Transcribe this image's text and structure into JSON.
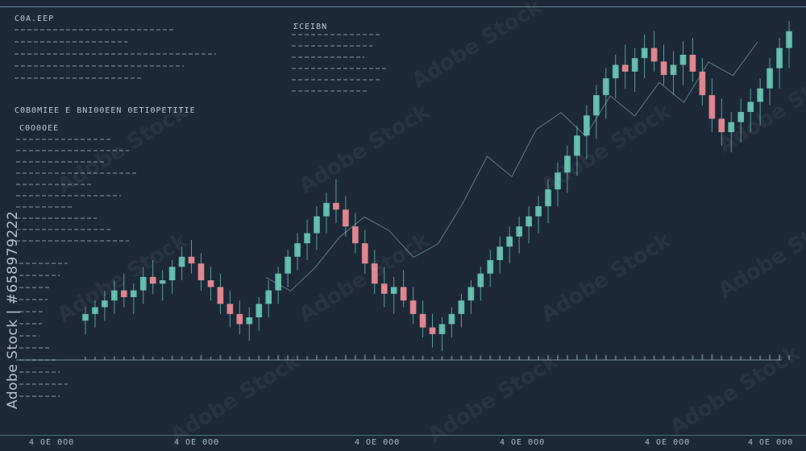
{
  "header": {
    "top_labels": [
      "",
      "",
      "",
      "",
      "",
      ""
    ]
  },
  "panel_left": {
    "title": "CΘΑ.ΕΕΡ",
    "section_title": "CΘΒΘΜΙΕΕ Ε ΒΝΙΘΘΕΕΝ ΘΕΤΙΘΡΕΤΙΤΙΕ",
    "subsection_title": "CΘΟΘΟΕΕ"
  },
  "panel_mid": {
    "title": "ΣCΕΙΒΝ"
  },
  "watermark": {
    "side_text": "Adobe Stock | #658979222",
    "tiled_text": "Adobe Stock"
  },
  "bottom_labels": [
    "4 ΟΕ ΘΟΘ",
    "4 ΟΕ ΘΟΘ",
    "4 ΟΕ ΘΟΘ",
    "4 ΟΕ ΘΟΘ",
    "4 ΟΕ ΘΟΘ",
    "4 ΟΕ ΘΟΘ"
  ],
  "colors": {
    "background": "#1c2838",
    "bull": "#6fd4bf",
    "bear": "#e98a93",
    "line": "#8fb2c4"
  },
  "chart_data": {
    "type": "candlestick",
    "title": "",
    "xlabel": "",
    "ylabel": "",
    "grid": false,
    "ylim": [
      0,
      100
    ],
    "candles": [
      {
        "o": 10,
        "h": 14,
        "l": 6,
        "c": 12
      },
      {
        "o": 12,
        "h": 16,
        "l": 8,
        "c": 14
      },
      {
        "o": 14,
        "h": 19,
        "l": 10,
        "c": 16
      },
      {
        "o": 16,
        "h": 22,
        "l": 12,
        "c": 19
      },
      {
        "o": 19,
        "h": 24,
        "l": 14,
        "c": 17
      },
      {
        "o": 17,
        "h": 21,
        "l": 12,
        "c": 19
      },
      {
        "o": 19,
        "h": 26,
        "l": 15,
        "c": 23
      },
      {
        "o": 23,
        "h": 28,
        "l": 18,
        "c": 21
      },
      {
        "o": 21,
        "h": 25,
        "l": 16,
        "c": 22
      },
      {
        "o": 22,
        "h": 28,
        "l": 18,
        "c": 26
      },
      {
        "o": 26,
        "h": 32,
        "l": 22,
        "c": 29
      },
      {
        "o": 29,
        "h": 34,
        "l": 24,
        "c": 27
      },
      {
        "o": 27,
        "h": 30,
        "l": 19,
        "c": 22
      },
      {
        "o": 22,
        "h": 26,
        "l": 16,
        "c": 20
      },
      {
        "o": 20,
        "h": 24,
        "l": 12,
        "c": 15
      },
      {
        "o": 15,
        "h": 19,
        "l": 8,
        "c": 12
      },
      {
        "o": 12,
        "h": 16,
        "l": 6,
        "c": 9
      },
      {
        "o": 9,
        "h": 14,
        "l": 4,
        "c": 11
      },
      {
        "o": 11,
        "h": 17,
        "l": 7,
        "c": 15
      },
      {
        "o": 15,
        "h": 22,
        "l": 11,
        "c": 19
      },
      {
        "o": 19,
        "h": 26,
        "l": 15,
        "c": 24
      },
      {
        "o": 24,
        "h": 31,
        "l": 20,
        "c": 29
      },
      {
        "o": 29,
        "h": 36,
        "l": 25,
        "c": 33
      },
      {
        "o": 33,
        "h": 40,
        "l": 28,
        "c": 36
      },
      {
        "o": 36,
        "h": 44,
        "l": 31,
        "c": 41
      },
      {
        "o": 41,
        "h": 48,
        "l": 36,
        "c": 45
      },
      {
        "o": 45,
        "h": 52,
        "l": 39,
        "c": 43
      },
      {
        "o": 43,
        "h": 47,
        "l": 35,
        "c": 38
      },
      {
        "o": 38,
        "h": 42,
        "l": 30,
        "c": 33
      },
      {
        "o": 33,
        "h": 37,
        "l": 24,
        "c": 27
      },
      {
        "o": 27,
        "h": 31,
        "l": 18,
        "c": 21
      },
      {
        "o": 21,
        "h": 26,
        "l": 14,
        "c": 18
      },
      {
        "o": 18,
        "h": 23,
        "l": 12,
        "c": 20
      },
      {
        "o": 20,
        "h": 25,
        "l": 14,
        "c": 16
      },
      {
        "o": 16,
        "h": 20,
        "l": 9,
        "c": 12
      },
      {
        "o": 12,
        "h": 16,
        "l": 5,
        "c": 8
      },
      {
        "o": 8,
        "h": 12,
        "l": 2,
        "c": 6
      },
      {
        "o": 6,
        "h": 11,
        "l": 1,
        "c": 9
      },
      {
        "o": 9,
        "h": 14,
        "l": 5,
        "c": 12
      },
      {
        "o": 12,
        "h": 18,
        "l": 8,
        "c": 16
      },
      {
        "o": 16,
        "h": 22,
        "l": 12,
        "c": 20
      },
      {
        "o": 20,
        "h": 26,
        "l": 16,
        "c": 24
      },
      {
        "o": 24,
        "h": 31,
        "l": 20,
        "c": 28
      },
      {
        "o": 28,
        "h": 35,
        "l": 24,
        "c": 32
      },
      {
        "o": 32,
        "h": 38,
        "l": 27,
        "c": 35
      },
      {
        "o": 35,
        "h": 41,
        "l": 30,
        "c": 38
      },
      {
        "o": 38,
        "h": 44,
        "l": 33,
        "c": 41
      },
      {
        "o": 41,
        "h": 47,
        "l": 36,
        "c": 44
      },
      {
        "o": 44,
        "h": 52,
        "l": 39,
        "c": 49
      },
      {
        "o": 49,
        "h": 57,
        "l": 44,
        "c": 54
      },
      {
        "o": 54,
        "h": 62,
        "l": 48,
        "c": 59
      },
      {
        "o": 59,
        "h": 68,
        "l": 53,
        "c": 65
      },
      {
        "o": 65,
        "h": 74,
        "l": 58,
        "c": 71
      },
      {
        "o": 71,
        "h": 80,
        "l": 64,
        "c": 77
      },
      {
        "o": 77,
        "h": 85,
        "l": 70,
        "c": 82
      },
      {
        "o": 82,
        "h": 89,
        "l": 76,
        "c": 86
      },
      {
        "o": 86,
        "h": 92,
        "l": 79,
        "c": 84
      },
      {
        "o": 84,
        "h": 91,
        "l": 78,
        "c": 88
      },
      {
        "o": 88,
        "h": 95,
        "l": 82,
        "c": 91
      },
      {
        "o": 91,
        "h": 96,
        "l": 84,
        "c": 87
      },
      {
        "o": 87,
        "h": 92,
        "l": 80,
        "c": 83
      },
      {
        "o": 83,
        "h": 90,
        "l": 77,
        "c": 86
      },
      {
        "o": 86,
        "h": 93,
        "l": 80,
        "c": 89
      },
      {
        "o": 89,
        "h": 94,
        "l": 81,
        "c": 84
      },
      {
        "o": 84,
        "h": 88,
        "l": 74,
        "c": 77
      },
      {
        "o": 77,
        "h": 82,
        "l": 66,
        "c": 70
      },
      {
        "o": 70,
        "h": 76,
        "l": 62,
        "c": 66
      },
      {
        "o": 66,
        "h": 72,
        "l": 60,
        "c": 69
      },
      {
        "o": 69,
        "h": 76,
        "l": 63,
        "c": 72
      },
      {
        "o": 72,
        "h": 79,
        "l": 66,
        "c": 75
      },
      {
        "o": 75,
        "h": 82,
        "l": 68,
        "c": 79
      },
      {
        "o": 79,
        "h": 88,
        "l": 74,
        "c": 85
      },
      {
        "o": 85,
        "h": 94,
        "l": 79,
        "c": 91
      },
      {
        "o": 91,
        "h": 99,
        "l": 85,
        "c": 96
      }
    ],
    "overlay_line": [
      {
        "x": 0.0,
        "y": 30
      },
      {
        "x": 0.05,
        "y": 26
      },
      {
        "x": 0.1,
        "y": 33
      },
      {
        "x": 0.15,
        "y": 42
      },
      {
        "x": 0.2,
        "y": 48
      },
      {
        "x": 0.25,
        "y": 44
      },
      {
        "x": 0.3,
        "y": 36
      },
      {
        "x": 0.35,
        "y": 40
      },
      {
        "x": 0.4,
        "y": 52
      },
      {
        "x": 0.45,
        "y": 66
      },
      {
        "x": 0.5,
        "y": 60
      },
      {
        "x": 0.55,
        "y": 74
      },
      {
        "x": 0.6,
        "y": 79
      },
      {
        "x": 0.65,
        "y": 72
      },
      {
        "x": 0.7,
        "y": 84
      },
      {
        "x": 0.75,
        "y": 78
      },
      {
        "x": 0.8,
        "y": 88
      },
      {
        "x": 0.85,
        "y": 82
      },
      {
        "x": 0.9,
        "y": 94
      },
      {
        "x": 0.95,
        "y": 90
      },
      {
        "x": 1.0,
        "y": 100
      }
    ]
  }
}
